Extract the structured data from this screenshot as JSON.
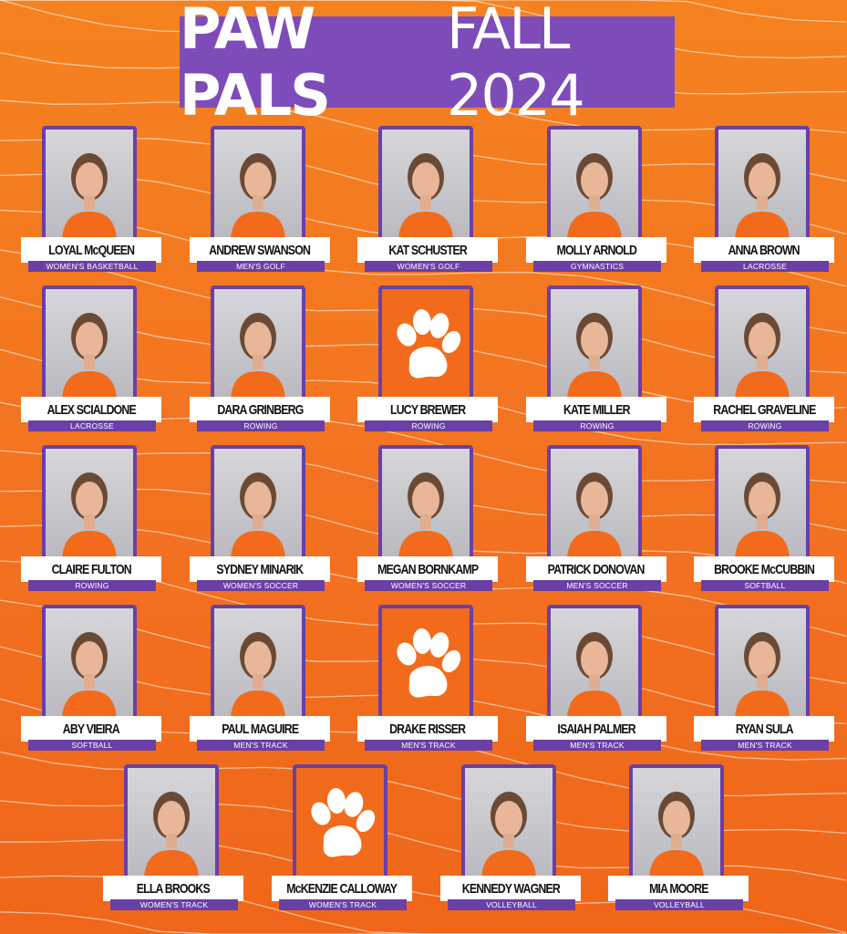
{
  "title": {
    "bold": "PAW PALS",
    "light": "FALL 2024"
  },
  "colors": {
    "background": "#f37321",
    "purple": "#7d4cb8",
    "plate": "#ffffff"
  },
  "rows": [
    [
      {
        "name": "LOYAL McQUEEN",
        "sport": "WOMEN'S BASKETBALL",
        "image": "photo"
      },
      {
        "name": "ANDREW SWANSON",
        "sport": "MEN'S GOLF",
        "image": "photo"
      },
      {
        "name": "KAT SCHUSTER",
        "sport": "WOMEN'S GOLF",
        "image": "photo"
      },
      {
        "name": "MOLLY ARNOLD",
        "sport": "GYMNASTICS",
        "image": "photo"
      },
      {
        "name": "ANNA BROWN",
        "sport": "LACROSSE",
        "image": "photo"
      }
    ],
    [
      {
        "name": "ALEX SCIALDONE",
        "sport": "LACROSSE",
        "image": "photo"
      },
      {
        "name": "DARA GRINBERG",
        "sport": "ROWING",
        "image": "photo"
      },
      {
        "name": "LUCY BREWER",
        "sport": "ROWING",
        "image": "paw-icon"
      },
      {
        "name": "KATE MILLER",
        "sport": "ROWING",
        "image": "photo"
      },
      {
        "name": "RACHEL GRAVELINE",
        "sport": "ROWING",
        "image": "photo"
      }
    ],
    [
      {
        "name": "CLAIRE FULTON",
        "sport": "ROWING",
        "image": "photo"
      },
      {
        "name": "SYDNEY MINARIK",
        "sport": "WOMEN'S SOCCER",
        "image": "photo"
      },
      {
        "name": "MEGAN BORNKAMP",
        "sport": "WOMEN'S SOCCER",
        "image": "photo"
      },
      {
        "name": "PATRICK DONOVAN",
        "sport": "MEN'S SOCCER",
        "image": "photo"
      },
      {
        "name": "BROOKE McCUBBIN",
        "sport": "SOFTBALL",
        "image": "photo"
      }
    ],
    [
      {
        "name": "ABY VIEIRA",
        "sport": "SOFTBALL",
        "image": "photo"
      },
      {
        "name": "PAUL MAGUIRE",
        "sport": "MEN'S TRACK",
        "image": "photo"
      },
      {
        "name": "DRAKE RISSER",
        "sport": "MEN'S TRACK",
        "image": "paw-icon"
      },
      {
        "name": "ISAIAH PALMER",
        "sport": "MEN'S TRACK",
        "image": "photo"
      },
      {
        "name": "RYAN SULA",
        "sport": "MEN'S TRACK",
        "image": "photo"
      }
    ],
    [
      {
        "name": "ELLA BROOKS",
        "sport": "WOMEN'S TRACK",
        "image": "photo"
      },
      {
        "name": "McKENZIE CALLOWAY",
        "sport": "WOMEN'S TRACK",
        "image": "paw-icon"
      },
      {
        "name": "KENNEDY WAGNER",
        "sport": "VOLLEYBALL",
        "image": "photo"
      },
      {
        "name": "MIA MOORE",
        "sport": "VOLLEYBALL",
        "image": "photo"
      }
    ]
  ]
}
